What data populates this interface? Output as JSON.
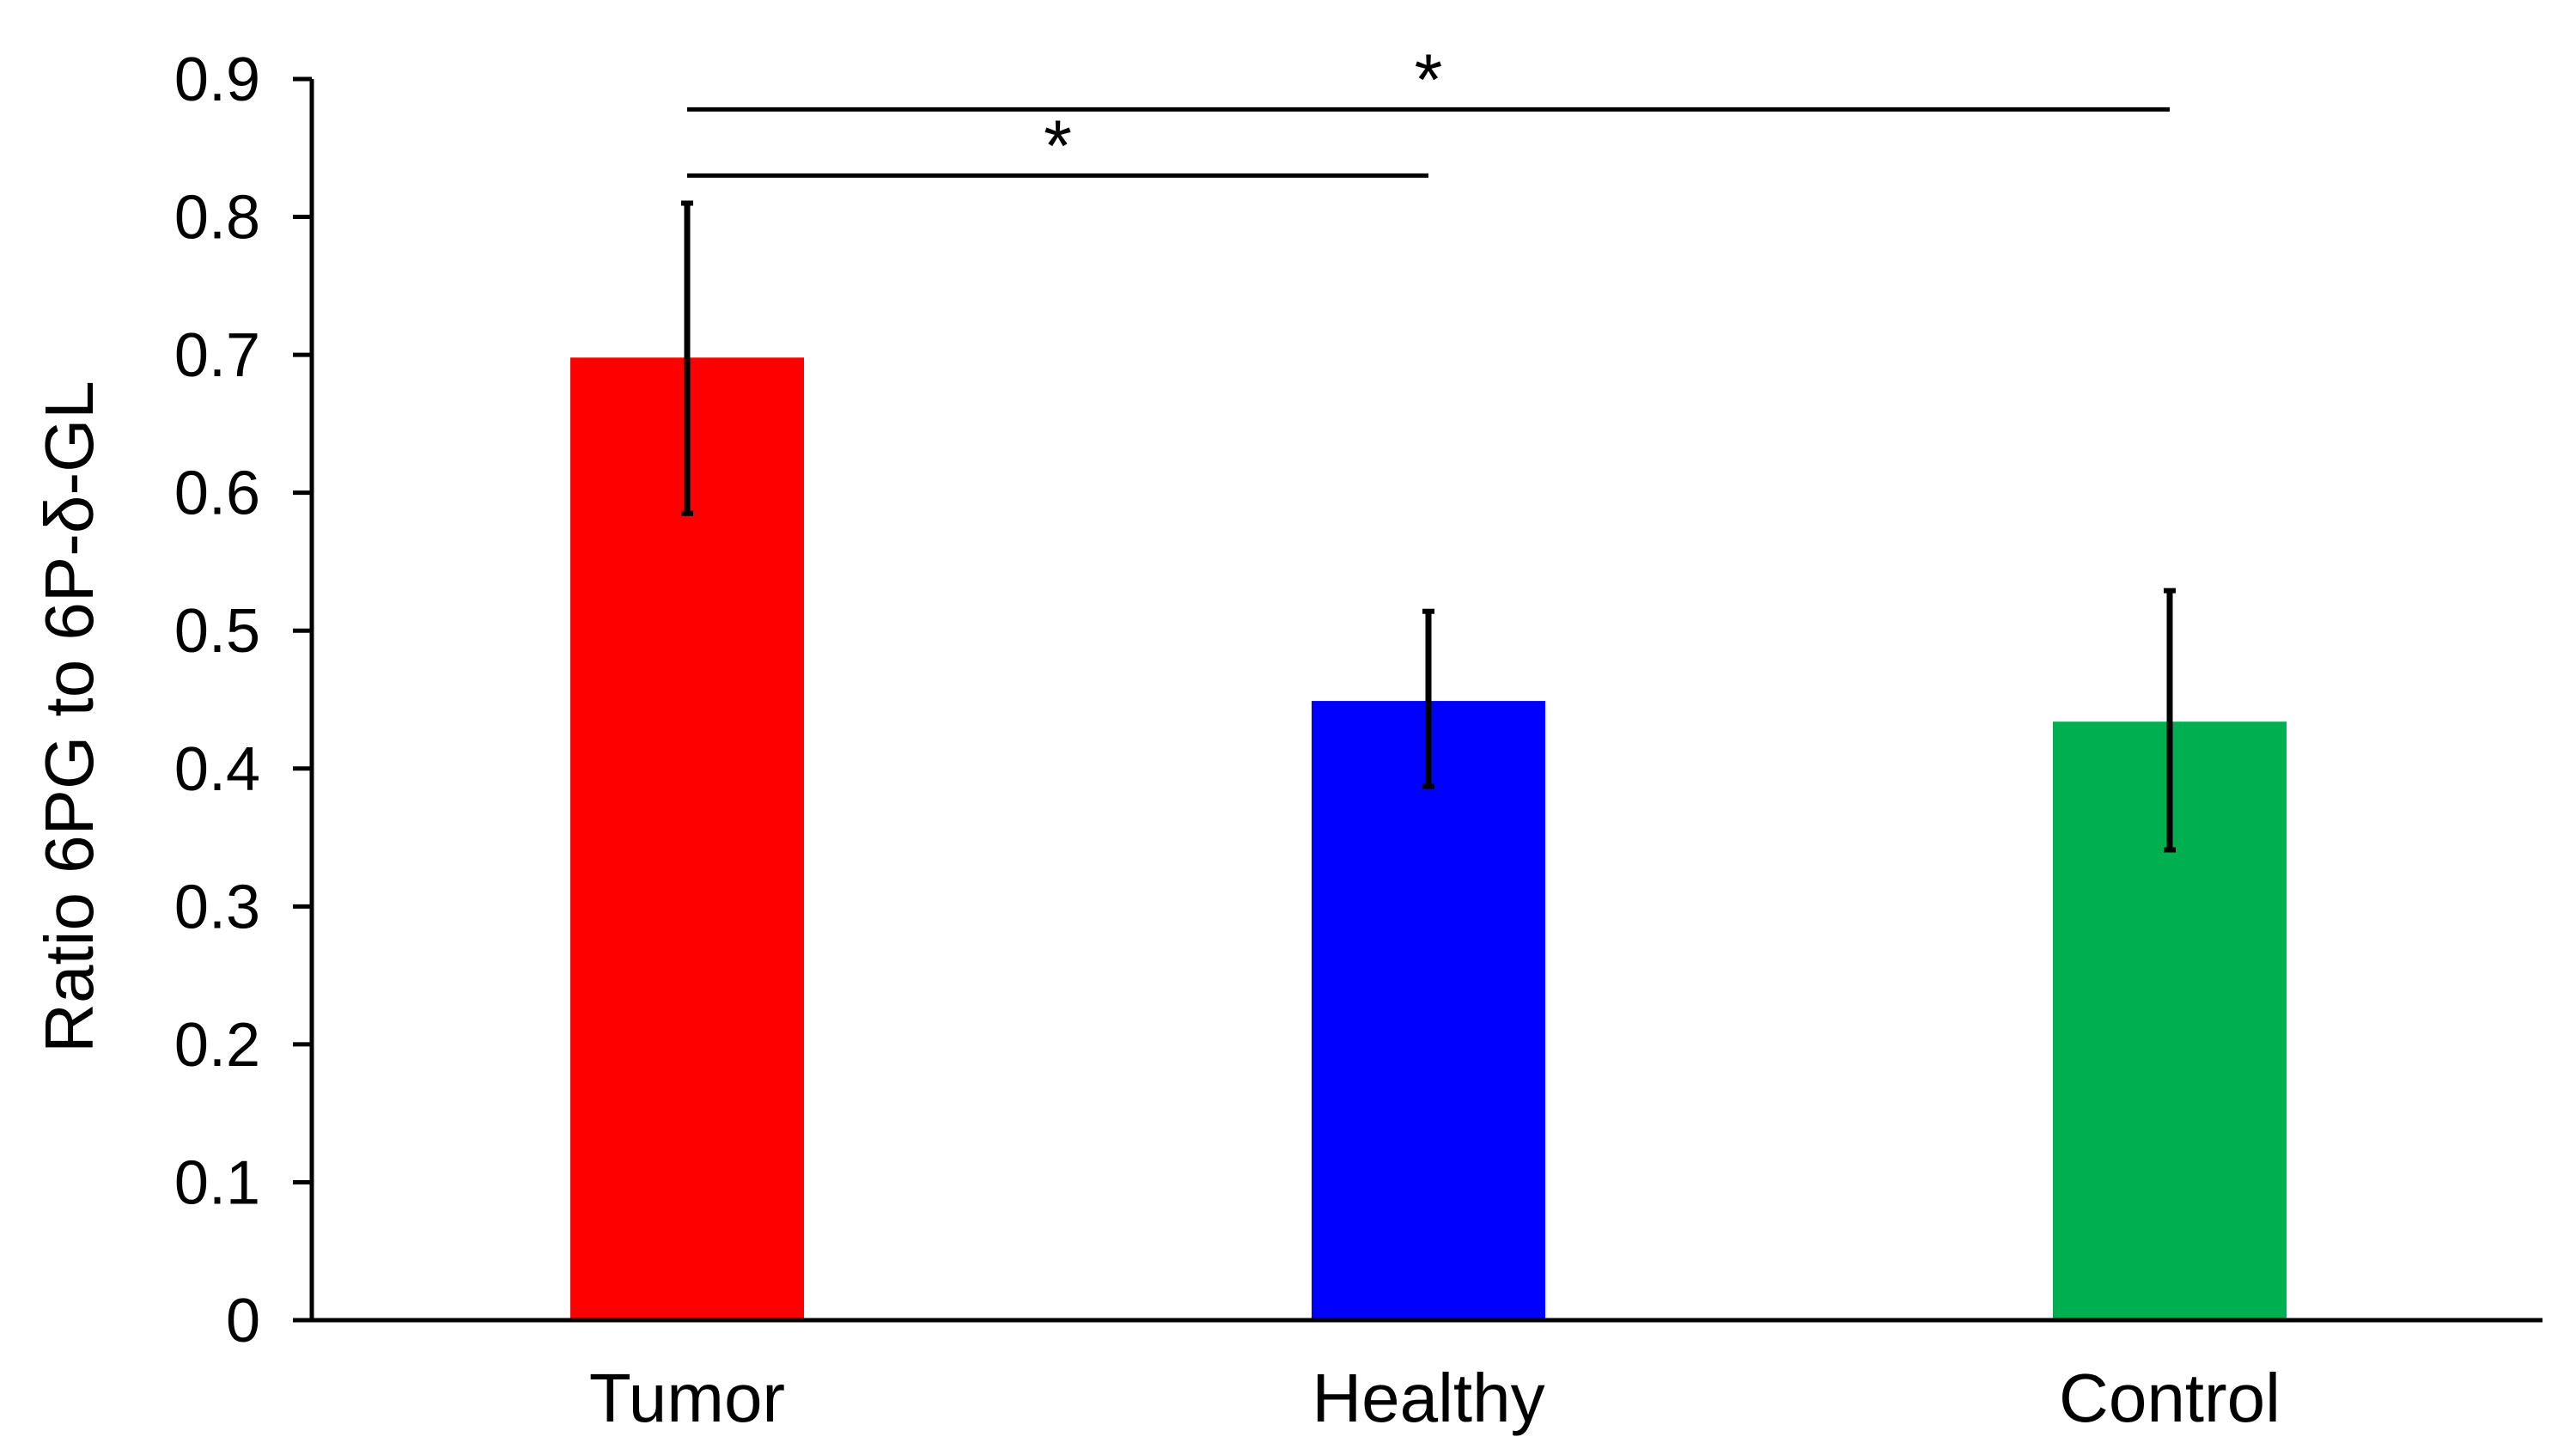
{
  "chart_data": {
    "type": "bar",
    "title": "",
    "xlabel": "",
    "ylabel": "Ratio 6PG to 6P-δ-GL",
    "ylim": [
      0,
      0.9
    ],
    "yticks": [
      "0",
      "0.1",
      "0.2",
      "0.3",
      "0.4",
      "0.5",
      "0.6",
      "0.7",
      "0.8",
      "0.9"
    ],
    "yticks_values": [
      0,
      0.1,
      0.2,
      0.3,
      0.4,
      0.5,
      0.6,
      0.7,
      0.8,
      0.9
    ],
    "categories": [
      "Tumor",
      "Healthy",
      "Control"
    ],
    "values": [
      0.698,
      0.449,
      0.434
    ],
    "error_low": [
      0.585,
      0.387,
      0.341
    ],
    "error_high": [
      0.81,
      0.514,
      0.529
    ],
    "colors": [
      "#ff0000",
      "#0000ff",
      "#00b050"
    ],
    "significance": [
      {
        "from": 0,
        "to": 1,
        "label": "*",
        "y": 0.83
      },
      {
        "from": 0,
        "to": 2,
        "label": "*",
        "y": 0.878
      }
    ],
    "grid": false,
    "legend": "none"
  }
}
